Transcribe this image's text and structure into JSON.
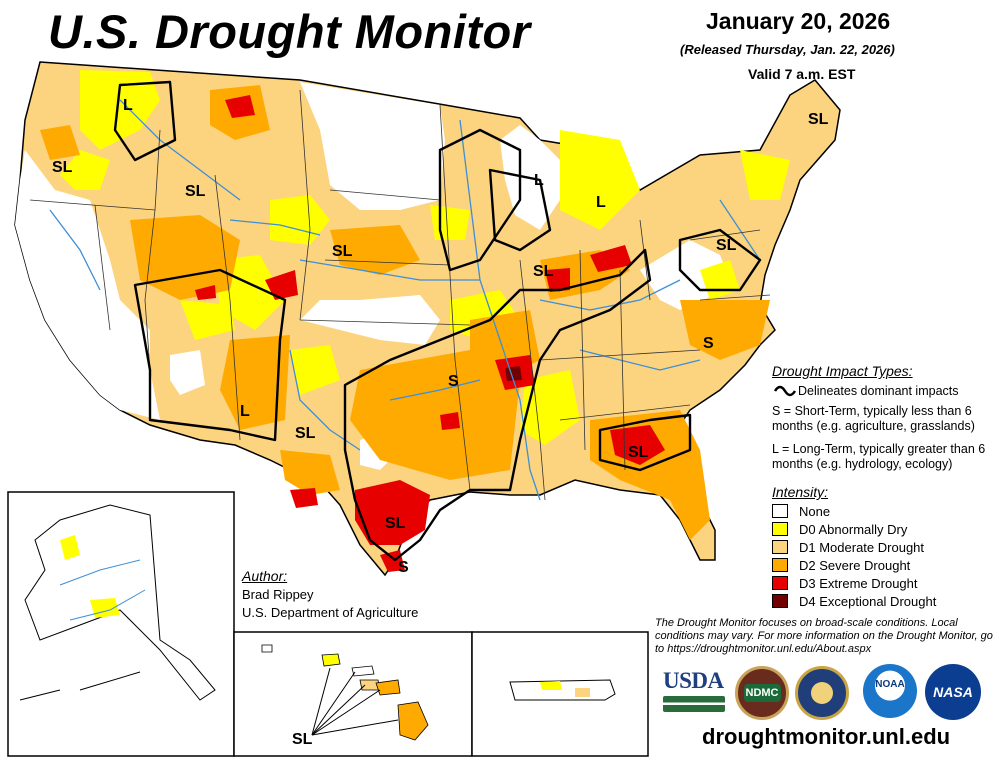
{
  "header": {
    "title": "U.S. Drought Monitor",
    "date": "January 20, 2026",
    "released": "(Released Thursday, Jan. 22, 2026)",
    "valid": "Valid 7 a.m. EST"
  },
  "impact_types": {
    "title": "Drought Impact Types:",
    "delineates": "Delineates dominant impacts",
    "short_term": "S = Short-Term, typically less than 6 months (e.g. agriculture, grasslands)",
    "long_term": "L = Long-Term, typically greater than 6 months (e.g. hydrology, ecology)"
  },
  "intensity": {
    "title": "Intensity:",
    "levels": [
      {
        "label": "None",
        "color": "#ffffff"
      },
      {
        "label": "D0 Abnormally Dry",
        "color": "#ffff00"
      },
      {
        "label": "D1 Moderate Drought",
        "color": "#fcd37f"
      },
      {
        "label": "D2 Severe Drought",
        "color": "#ffaa00"
      },
      {
        "label": "D3 Extreme Drought",
        "color": "#e60000"
      },
      {
        "label": "D4 Exceptional Drought",
        "color": "#730000"
      }
    ]
  },
  "author": {
    "label": "Author:",
    "name": "Brad Rippey",
    "org": "U.S. Department of Agriculture"
  },
  "footnote": "The Drought Monitor focuses on broad-scale conditions. Local conditions may vary. For more information on the Drought Monitor, go to https://droughtmonitor.unl.edu/About.aspx",
  "website": "droughtmonitor.unl.edu",
  "logos": {
    "usda": "USDA",
    "ndmc": "NDMC",
    "noaa": "NOAA",
    "nasa": "NASA"
  },
  "map_labels": {
    "sl": "SL",
    "s": "S",
    "l": "L"
  },
  "colors": {
    "d0": "#ffff00",
    "d1": "#fcd37f",
    "d2": "#ffaa00",
    "d3": "#e60000",
    "d4": "#730000",
    "water": "#3d8fd6",
    "border": "#000000"
  }
}
